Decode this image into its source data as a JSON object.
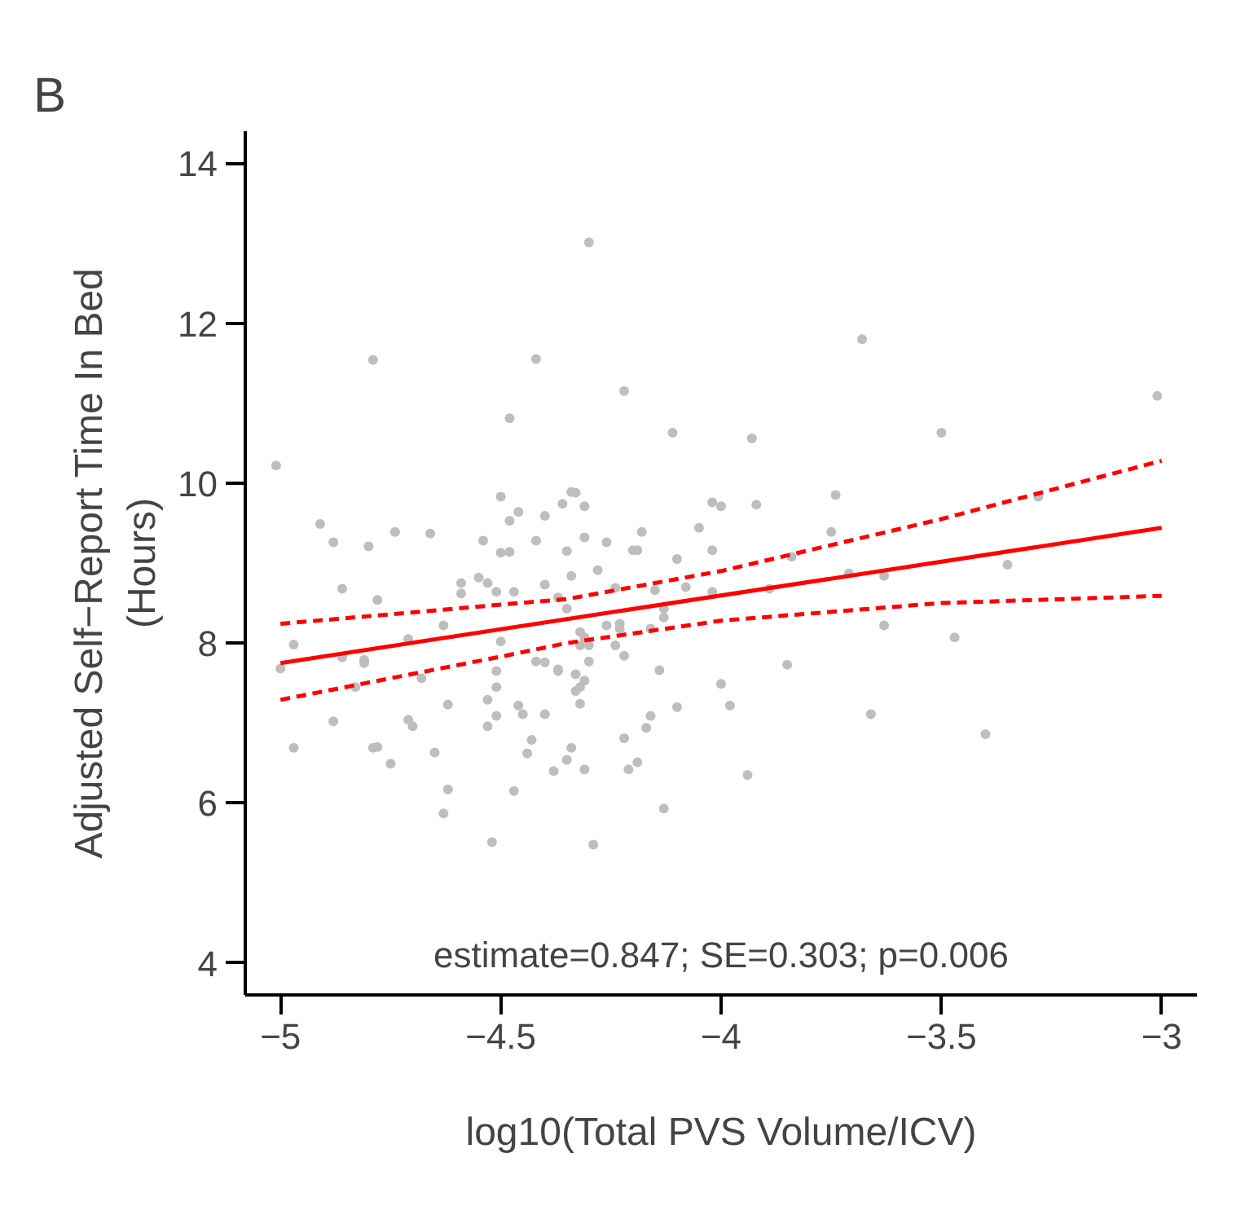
{
  "chart_data": {
    "type": "scatter",
    "title": "B",
    "xlabel": "log10(Total PVS Volume/ICV)",
    "ylabel": "Adjusted Self−Report Time In Bed\n(Hours)",
    "annotations": [
      "estimate=0.847; SE=0.303; p=0.006"
    ],
    "xlim": [
      -5.08,
      -2.92
    ],
    "ylim": [
      3.6,
      14.4
    ],
    "xticks": [
      {
        "value": -5,
        "label": "−5"
      },
      {
        "value": -4.5,
        "label": "−4.5"
      },
      {
        "value": -4,
        "label": "−4"
      },
      {
        "value": -3.5,
        "label": "−3.5"
      },
      {
        "value": -3,
        "label": "−3"
      }
    ],
    "yticks": [
      4,
      6,
      8,
      10,
      12,
      14
    ],
    "grid": false,
    "series": [
      {
        "color": "#bebebe",
        "marker": "circle",
        "x": [
          -4.79,
          -4.42,
          -4.48,
          -5.01,
          -4.91,
          -4.88,
          -4.8,
          -4.74,
          -4.66,
          -4.54,
          -4.5,
          -4.46,
          -4.48,
          -4.4,
          -4.36,
          -4.34,
          -4.42,
          -4.5,
          -4.48,
          -4.35,
          -4.34,
          -4.86,
          -4.78,
          -4.59,
          -4.59,
          -4.55,
          -4.53,
          -4.51,
          -4.47,
          -4.4,
          -4.37,
          -4.97,
          -5.0,
          -4.86,
          -4.81,
          -4.81,
          -4.71,
          -4.63,
          -4.5,
          -4.42,
          -4.4,
          -4.37,
          -4.33,
          -4.51,
          -4.68,
          -4.51,
          -4.83,
          -4.88,
          -4.62,
          -4.53,
          -4.71,
          -4.7,
          -4.51,
          -4.46,
          -4.45,
          -4.4,
          -4.53,
          -4.97,
          -4.79,
          -4.78,
          -4.75,
          -4.65,
          -4.62,
          -4.63,
          -4.47,
          -4.43,
          -4.44,
          -4.38,
          -4.34,
          -4.35,
          -4.52,
          -4.3,
          -3.68,
          -4.22,
          -4.11,
          -3.93,
          -4.33,
          -4.31,
          -4.02,
          -4.0,
          -3.92,
          -3.74,
          -4.31,
          -4.26,
          -4.18,
          -4.05,
          -3.75,
          -4.2,
          -4.19,
          -4.02,
          -4.1,
          -4.28,
          -4.24,
          -4.15,
          -4.08,
          -4.02,
          -3.89,
          -3.84,
          -3.71,
          -3.63,
          -4.35,
          -4.13,
          -4.13,
          -4.26,
          -4.23,
          -4.23,
          -4.16,
          -4.32,
          -4.31,
          -4.32,
          -4.3,
          -4.3,
          -4.24,
          -4.22,
          -4.37,
          -4.14,
          -3.85,
          -3.63,
          -4.31,
          -4.32,
          -4.33,
          -4.32,
          -4.0,
          -3.98,
          -4.1,
          -4.16,
          -4.17,
          -4.22,
          -4.31,
          -4.21,
          -4.19,
          -3.94,
          -4.13,
          -4.29,
          -3.66,
          -3.01,
          -3.5,
          -3.28,
          -3.35,
          -3.47,
          -3.4
        ],
        "values": [
          11.54,
          11.55,
          10.81,
          10.22,
          9.49,
          9.26,
          9.21,
          9.39,
          9.37,
          9.28,
          9.83,
          9.64,
          9.53,
          9.59,
          9.74,
          9.89,
          9.28,
          9.13,
          9.14,
          9.15,
          8.84,
          8.68,
          8.54,
          8.75,
          8.62,
          8.82,
          8.75,
          8.64,
          8.64,
          8.73,
          8.57,
          7.98,
          7.68,
          7.82,
          7.79,
          7.75,
          8.05,
          8.22,
          8.02,
          7.77,
          7.76,
          7.65,
          7.61,
          7.65,
          7.56,
          7.45,
          7.45,
          7.02,
          7.23,
          7.29,
          7.04,
          6.96,
          7.09,
          7.22,
          7.11,
          7.11,
          6.96,
          6.69,
          6.69,
          6.7,
          6.49,
          6.63,
          6.17,
          5.87,
          6.15,
          6.79,
          6.62,
          6.4,
          6.69,
          6.54,
          5.51,
          13.01,
          11.8,
          11.15,
          10.63,
          10.56,
          9.88,
          9.71,
          9.76,
          9.71,
          9.73,
          9.85,
          9.32,
          9.26,
          9.39,
          9.44,
          9.39,
          9.16,
          9.16,
          9.16,
          9.05,
          8.91,
          8.69,
          8.66,
          8.7,
          8.64,
          8.68,
          9.08,
          8.87,
          8.84,
          8.43,
          8.43,
          8.32,
          8.22,
          8.24,
          8.18,
          8.18,
          8.14,
          8.07,
          7.97,
          7.97,
          7.77,
          7.97,
          7.84,
          7.67,
          7.66,
          7.73,
          8.22,
          7.53,
          7.45,
          7.4,
          7.24,
          7.49,
          7.22,
          7.2,
          7.09,
          6.94,
          6.81,
          6.42,
          6.42,
          6.51,
          6.35,
          5.93,
          5.48,
          7.11,
          11.09,
          10.63,
          9.83,
          8.98,
          8.07,
          6.86
        ]
      },
      {
        "type": "line",
        "color": "#ff0000",
        "line_style": "solid",
        "x": [
          -5,
          -3
        ],
        "values": [
          7.75,
          9.44
        ]
      },
      {
        "type": "line",
        "color": "#ff0000",
        "line_style": "dashed",
        "x": [
          -5,
          -4.5,
          -4.35,
          -4,
          -3.5,
          -3
        ],
        "values": [
          8.24,
          8.48,
          8.55,
          8.9,
          9.55,
          10.28
        ]
      },
      {
        "type": "line",
        "color": "#ff0000",
        "line_style": "dashed",
        "x": [
          -5,
          -4.5,
          -4.35,
          -4,
          -3.5,
          -3
        ],
        "values": [
          7.29,
          7.83,
          8.0,
          8.28,
          8.5,
          8.59
        ]
      }
    ]
  }
}
